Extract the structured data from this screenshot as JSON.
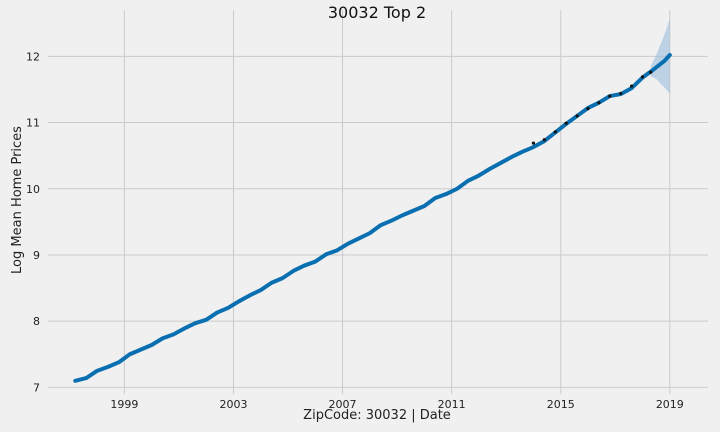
{
  "chart_data": {
    "type": "line",
    "title": "30032 Top 2",
    "xlabel": "ZipCode: 30032 | Date",
    "ylabel": "Log Mean Home Prices",
    "xlim": [
      1996.2,
      2020.4
    ],
    "ylim": [
      6.9,
      12.7
    ],
    "grid": true,
    "x_ticks": [
      1999,
      2003,
      2007,
      2011,
      2015,
      2019
    ],
    "y_ticks": [
      7,
      8,
      9,
      10,
      11,
      12
    ],
    "colors": {
      "background": "#f0f0f0",
      "grid": "#cbcbcb",
      "line": "#0a6fb0",
      "band": "#9bbfdd",
      "observed_points": "#111111"
    },
    "series": [
      {
        "role": "forecast",
        "x": [
          1997.2,
          1997.6,
          1998.0,
          1998.4,
          1998.8,
          1999.2,
          1999.6,
          2000.0,
          2000.4,
          2000.8,
          2001.2,
          2001.6,
          2002.0,
          2002.4,
          2002.8,
          2003.2,
          2003.6,
          2004.0,
          2004.4,
          2004.8,
          2005.2,
          2005.6,
          2006.0,
          2006.4,
          2006.8,
          2007.2,
          2007.6,
          2008.0,
          2008.4,
          2008.8,
          2009.2,
          2009.6,
          2010.0,
          2010.4,
          2010.8,
          2011.2,
          2011.6,
          2012.0,
          2012.4,
          2012.8,
          2013.2,
          2013.6,
          2014.0,
          2014.4,
          2014.8,
          2015.2,
          2015.6,
          2016.0,
          2016.4,
          2016.8,
          2017.2,
          2017.6,
          2018.0,
          2018.4,
          2018.8,
          2019.0
        ],
        "y": [
          7.1,
          7.14,
          7.25,
          7.31,
          7.38,
          7.5,
          7.57,
          7.64,
          7.74,
          7.8,
          7.89,
          7.97,
          8.02,
          8.13,
          8.2,
          8.3,
          8.39,
          8.47,
          8.58,
          8.65,
          8.76,
          8.84,
          8.9,
          9.01,
          9.07,
          9.17,
          9.25,
          9.33,
          9.45,
          9.52,
          9.6,
          9.67,
          9.74,
          9.86,
          9.92,
          10.0,
          10.12,
          10.2,
          10.3,
          10.39,
          10.48,
          10.56,
          10.63,
          10.72,
          10.85,
          10.98,
          11.1,
          11.22,
          11.3,
          11.4,
          11.43,
          11.52,
          11.68,
          11.8,
          11.93,
          12.02
        ]
      },
      {
        "role": "observed",
        "x": [
          2014.0,
          2014.4,
          2014.8,
          2015.2,
          2015.6,
          2016.0,
          2016.4,
          2016.8,
          2017.2,
          2017.6,
          2018.0,
          2018.3
        ],
        "y": [
          10.69,
          10.74,
          10.86,
          10.99,
          11.1,
          11.21,
          11.3,
          11.4,
          11.44,
          11.55,
          11.69,
          11.76
        ]
      }
    ],
    "confidence_band": {
      "x": [
        2018.3,
        2018.5,
        2018.7,
        2018.9,
        2019.0
      ],
      "lower": [
        11.7,
        11.66,
        11.57,
        11.49,
        11.43
      ],
      "upper": [
        11.85,
        12.02,
        12.22,
        12.44,
        12.58
      ]
    }
  }
}
